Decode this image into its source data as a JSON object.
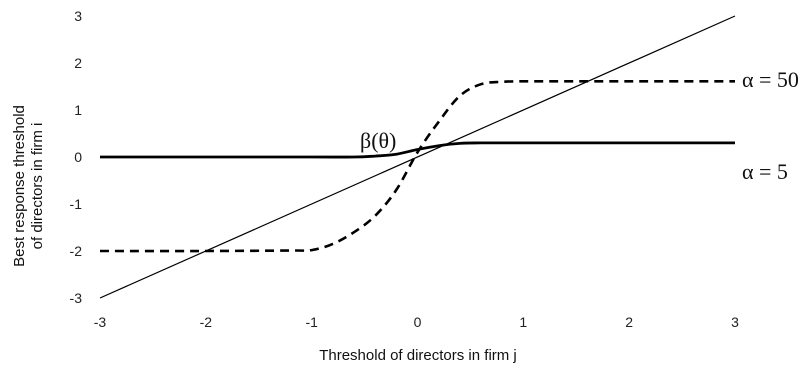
{
  "chart_data": {
    "type": "line",
    "title": "",
    "xlabel": "Threshold of directors in firm j",
    "ylabel_line1": "Best response threshold",
    "ylabel_line2": "of directors in firm i",
    "xlim": [
      -3,
      3
    ],
    "ylim": [
      -3,
      3
    ],
    "x_ticks": [
      "-3",
      "-2",
      "-1",
      "0",
      "1",
      "2",
      "3"
    ],
    "y_ticks": [
      "-3",
      "-2",
      "-1",
      "0",
      "1",
      "2",
      "3"
    ],
    "grid": false,
    "annotation": "β(θ)",
    "series": [
      {
        "name": "α = 50",
        "style": "dashed",
        "x": [
          -3,
          -2,
          -1.2,
          -1,
          -0.8,
          -0.6,
          -0.4,
          -0.2,
          0,
          0.2,
          0.4,
          0.6,
          0.8,
          1,
          1.2,
          2,
          3
        ],
        "y": [
          -2,
          -2,
          -1.99,
          -1.98,
          -1.85,
          -1.6,
          -1.25,
          -0.7,
          0.1,
          0.75,
          1.3,
          1.55,
          1.6,
          1.61,
          1.61,
          1.61,
          1.61
        ]
      },
      {
        "name": "α = 5",
        "style": "solid-thick",
        "x": [
          -3,
          -2,
          -1,
          -0.6,
          -0.4,
          -0.2,
          0,
          0.2,
          0.4,
          0.6,
          0.8,
          1,
          2,
          3
        ],
        "y": [
          0,
          0,
          0,
          0,
          0.02,
          0.06,
          0.16,
          0.24,
          0.29,
          0.3,
          0.3,
          0.3,
          0.3,
          0.3
        ]
      },
      {
        "name": "",
        "style": "solid-thin",
        "x": [
          -3,
          3
        ],
        "y": [
          -3,
          3
        ]
      }
    ],
    "colors": {
      "line": "#000000",
      "text": "#111111"
    }
  }
}
